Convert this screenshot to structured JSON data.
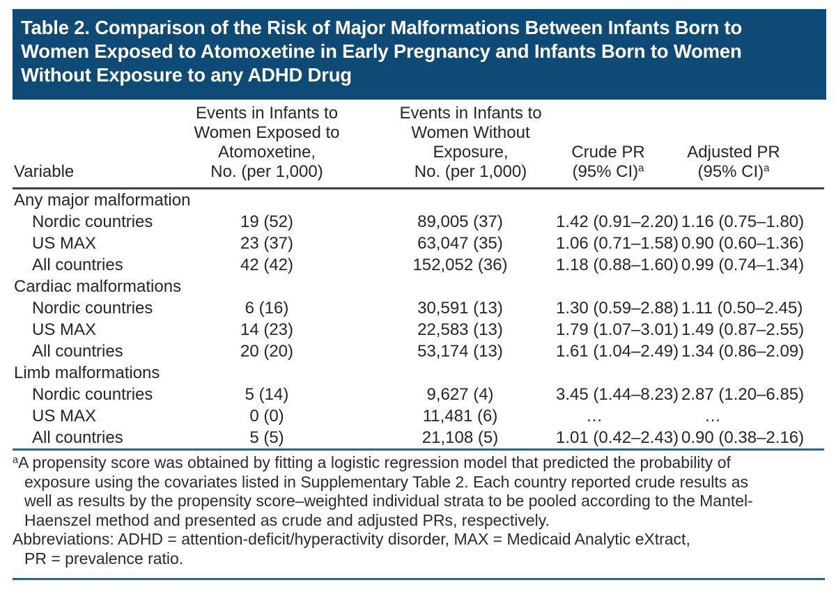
{
  "page": {
    "accent_blue": "#0d4a75",
    "rule_blue": "#2a6496",
    "rule_dark": "#414042",
    "text_color": "#262626"
  },
  "title_lines": [
    "Table 2. Comparison of the Risk of Major Malformations Between Infants Born to",
    "Women Exposed to Atomoxetine in Early Pregnancy and Infants Born to Women",
    "Without Exposure to any ADHD Drug"
  ],
  "table": {
    "header": {
      "variable": "Variable",
      "exposed_lines": [
        "Events in Infants to",
        "Women Exposed to",
        "Atomoxetine,",
        "No. (per 1,000)"
      ],
      "unexposed_lines": [
        "Events in Infants to",
        "Women Without",
        "Exposure,",
        "No. (per 1,000)"
      ],
      "crude_line1": "Crude PR",
      "crude_line2": "(95% CI)",
      "crude_sup": "a",
      "adjusted_line1": "Adjusted PR",
      "adjusted_line2": "(95% CI)",
      "adjusted_sup": "a"
    },
    "groups": [
      {
        "label": "Any major malformation",
        "rows": [
          {
            "variable": "Nordic countries",
            "exposed": "19 (52)",
            "unexposed": "89,005 (37)",
            "crude": "1.42 (0.91–2.20)",
            "adjusted": "1.16 (0.75–1.80)"
          },
          {
            "variable": "US MAX",
            "exposed": "23 (37)",
            "unexposed": "63,047 (35)",
            "crude": "1.06 (0.71–1.58)",
            "adjusted": "0.90 (0.60–1.36)"
          },
          {
            "variable": "All countries",
            "exposed": "42 (42)",
            "unexposed": "152,052 (36)",
            "crude": "1.18 (0.88–1.60)",
            "adjusted": "0.99 (0.74–1.34)"
          }
        ]
      },
      {
        "label": "Cardiac malformations",
        "rows": [
          {
            "variable": "Nordic countries",
            "exposed": "6 (16)",
            "unexposed": "30,591 (13)",
            "crude": "1.30 (0.59–2.88)",
            "adjusted": "1.11 (0.50–2.45)"
          },
          {
            "variable": "US MAX",
            "exposed": "14 (23)",
            "unexposed": "22,583 (13)",
            "crude": "1.79 (1.07–3.01)",
            "adjusted": "1.49 (0.87–2.55)"
          },
          {
            "variable": "All countries",
            "exposed": "20 (20)",
            "unexposed": "53,174 (13)",
            "crude": "1.61 (1.04–2.49)",
            "adjusted": "1.34 (0.86–2.09)"
          }
        ]
      },
      {
        "label": "Limb malformations",
        "rows": [
          {
            "variable": "Nordic countries",
            "exposed": "5 (14)",
            "unexposed": "9,627 (4)",
            "crude": "3.45 (1.44–8.23)",
            "adjusted": "2.87 (1.20–6.85)"
          },
          {
            "variable": "US MAX",
            "exposed": "0 (0)",
            "unexposed": "11,481 (6)",
            "crude": "…",
            "adjusted": "…"
          },
          {
            "variable": "All countries",
            "exposed": "5 (5)",
            "unexposed": "21,108 (5)",
            "crude": "1.01 (0.42–2.43)",
            "adjusted": "0.90 (0.38–2.16)"
          }
        ]
      }
    ]
  },
  "footnotes": [
    {
      "sup": "a",
      "lines": [
        "A propensity score was obtained by fitting a logistic regression model that predicted the probability of",
        "exposure using the covariates listed in Supplementary Table 2. Each country reported crude results as",
        "well as results by the propensity score–weighted individual strata to be pooled according to the Mantel-",
        "Haenszel method and presented as crude and adjusted PRs, respectively."
      ]
    },
    {
      "sup": "",
      "lines": [
        "Abbreviations: ADHD = attention-deficit/hyperactivity disorder, MAX = Medicaid Analytic eXtract,",
        "PR = prevalence ratio."
      ]
    }
  ]
}
